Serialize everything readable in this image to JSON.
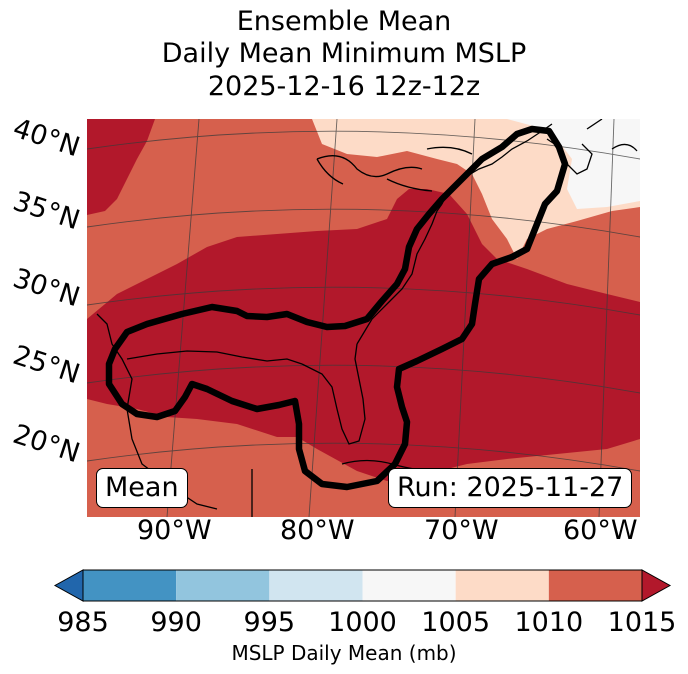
{
  "title": {
    "line1": "Ensemble Mean",
    "line2": "Daily Mean Minimum MSLP",
    "line3": "2025-12-16 12z-12z"
  },
  "map": {
    "latitude_labels": [
      "40°N",
      "35°N",
      "30°N",
      "25°N",
      "20°N"
    ],
    "longitude_labels": [
      "90°W",
      "80°W",
      "70°W",
      "60°W"
    ],
    "mean_label": "Mean",
    "run_label": "Run: 2025-11-27",
    "region": "US East Coast / Gulf of Mexico / Western Atlantic",
    "contour": "black outline of ensemble-mean low-pressure track region",
    "colors": {
      "c1010_1015": "#d6604d",
      "c1005_1010": "#fddbc7",
      "c1000_1005": "#f7f7f7",
      "below_1015_dark": "#b2182b",
      "coast": "#000000"
    }
  },
  "colorbar": {
    "label": "MSLP Daily Mean (mb)",
    "ticks": [
      "985",
      "990",
      "995",
      "1000",
      "1005",
      "1010",
      "1015"
    ],
    "colors": [
      "#4393c3",
      "#92c5de",
      "#d1e5f0",
      "#f7f7f7",
      "#fddbc7",
      "#d6604d"
    ],
    "under_color": "#2166ac",
    "over_color": "#b2182b"
  }
}
